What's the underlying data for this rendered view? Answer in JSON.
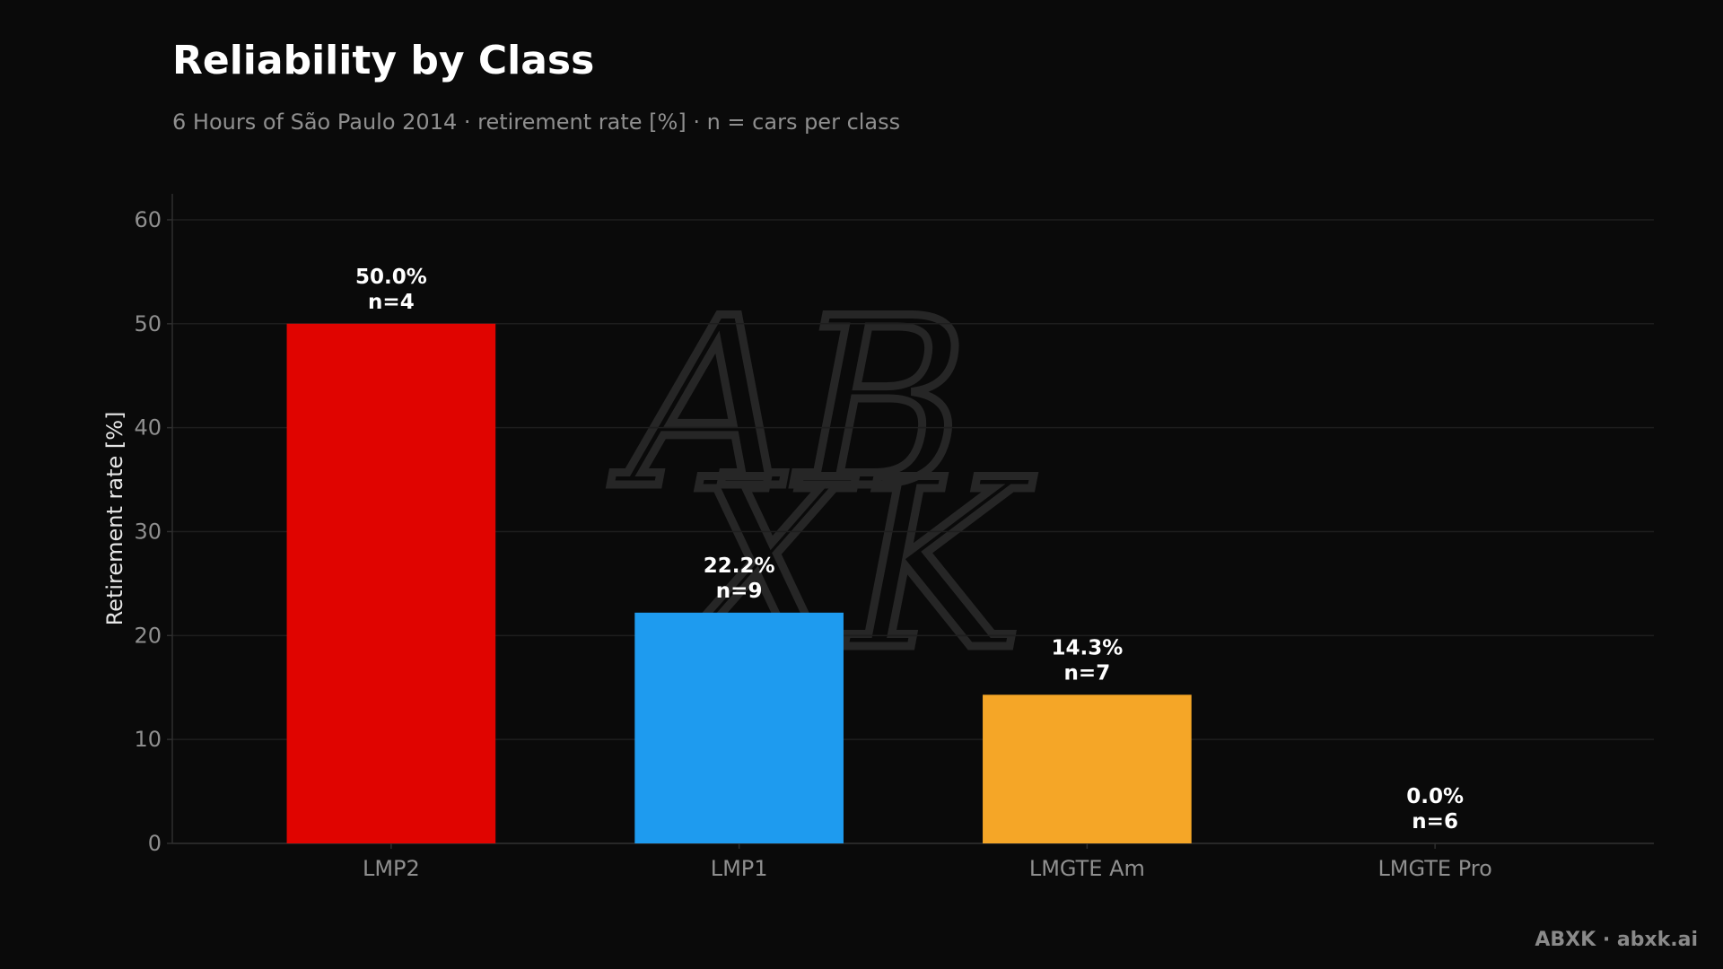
{
  "chart_data": {
    "type": "bar",
    "title": "Reliability by Class",
    "subtitle": "6 Hours of São Paulo 2014 · retirement rate [%] · n = cars per class",
    "xlabel": "",
    "ylabel": "Retirement rate [%]",
    "ylim": [
      0,
      62.5
    ],
    "yticks": [
      0,
      10,
      20,
      30,
      40,
      50,
      60
    ],
    "grid": true,
    "categories": [
      "LMP2",
      "LMP1",
      "LMGTE Am",
      "LMGTE Pro"
    ],
    "values": [
      50.0,
      22.2,
      14.3,
      0.0
    ],
    "value_labels": [
      "50.0%",
      "22.2%",
      "14.3%",
      "0.0%"
    ],
    "n_labels": [
      "n=4",
      "n=9",
      "n=7",
      "n=6"
    ],
    "colors": [
      "#e00400",
      "#1e9bef",
      "#f5a627",
      "#8a8a8a"
    ]
  },
  "footer": {
    "credit": "ABXK · abxk.ai"
  },
  "watermark": {
    "line1": "AB",
    "line2": "XK"
  },
  "theme": {
    "background": "#0a0a0a",
    "grid": "#1e1e1e",
    "axis": "#2e2e2e"
  }
}
